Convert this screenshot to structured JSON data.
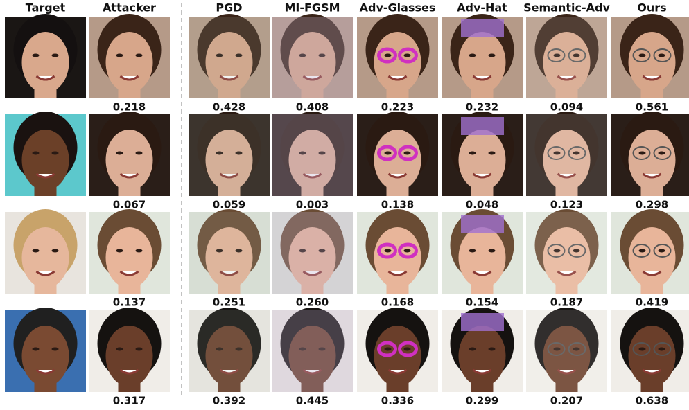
{
  "header": {
    "columns": [
      "Target",
      "Attacker",
      "PGD",
      "MI-FGSM",
      "Adv-Glasses",
      "Adv-Hat",
      "Semantic-Adv",
      "Ours"
    ]
  },
  "rows": [
    {
      "scores": [
        "0.218",
        "0.428",
        "0.408",
        "0.223",
        "0.232",
        "0.094",
        "0.561"
      ]
    },
    {
      "scores": [
        "0.067",
        "0.059",
        "0.003",
        "0.138",
        "0.048",
        "0.123",
        "0.298"
      ]
    },
    {
      "scores": [
        "0.137",
        "0.251",
        "0.260",
        "0.168",
        "0.154",
        "0.187",
        "0.419"
      ]
    },
    {
      "scores": [
        "0.317",
        "0.392",
        "0.445",
        "0.336",
        "0.299",
        "0.207",
        "0.638"
      ]
    }
  ]
}
